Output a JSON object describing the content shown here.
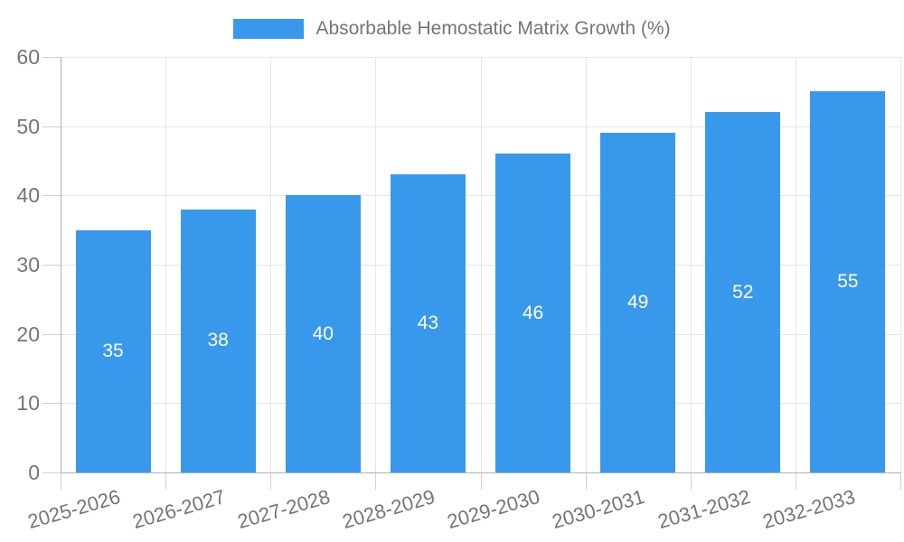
{
  "chart_data": {
    "type": "bar",
    "title": "",
    "legend": "Absorbable Hemostatic Matrix Growth (%)",
    "legend_position": "top",
    "categories": [
      "2025-2026",
      "2026-2027",
      "2027-2028",
      "2028-2029",
      "2029-2030",
      "2030-2031",
      "2031-2032",
      "2032-2033"
    ],
    "values": [
      35,
      38,
      40,
      43,
      46,
      49,
      52,
      55
    ],
    "xlabel": "",
    "ylabel": "",
    "ylim": [
      0,
      60
    ],
    "yticks": [
      0,
      10,
      20,
      30,
      40,
      50,
      60
    ],
    "grid": true,
    "bar_labels_inside": true,
    "colors": {
      "bar": "#3899ec",
      "bar_label": "#ffffff",
      "axis_text": "#757575",
      "axis_line": "#b0b0b0",
      "tick_line": "#d0d0d0",
      "grid_line": "#e6e6e6",
      "background": "#ffffff"
    }
  }
}
